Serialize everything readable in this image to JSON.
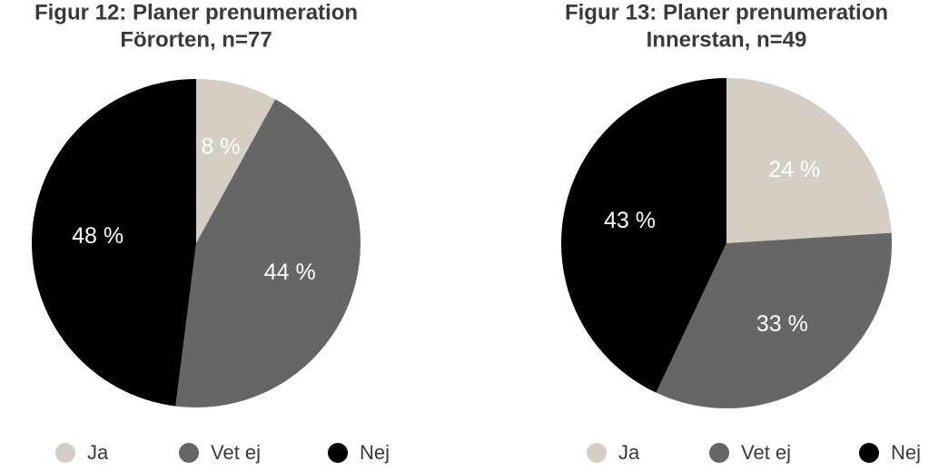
{
  "chart_data": [
    {
      "type": "pie",
      "title": "Figur 12: Planer prenumeration",
      "subtitle": "Förorten, n=77",
      "categories": [
        "Ja",
        "Vet ej",
        "Nej"
      ],
      "values": [
        8,
        44,
        48
      ],
      "value_labels": [
        "8 %",
        "44 %",
        "48 %"
      ],
      "colors": [
        "#d4cec4",
        "#666666",
        "#000000"
      ]
    },
    {
      "type": "pie",
      "title": "Figur 13: Planer prenumeration",
      "subtitle": "Innerstan, n=49",
      "categories": [
        "Ja",
        "Vet ej",
        "Nej"
      ],
      "values": [
        24,
        33,
        43
      ],
      "value_labels": [
        "24 %",
        "33 %",
        "43 %"
      ],
      "colors": [
        "#d4cec4",
        "#666666",
        "#000000"
      ]
    }
  ]
}
